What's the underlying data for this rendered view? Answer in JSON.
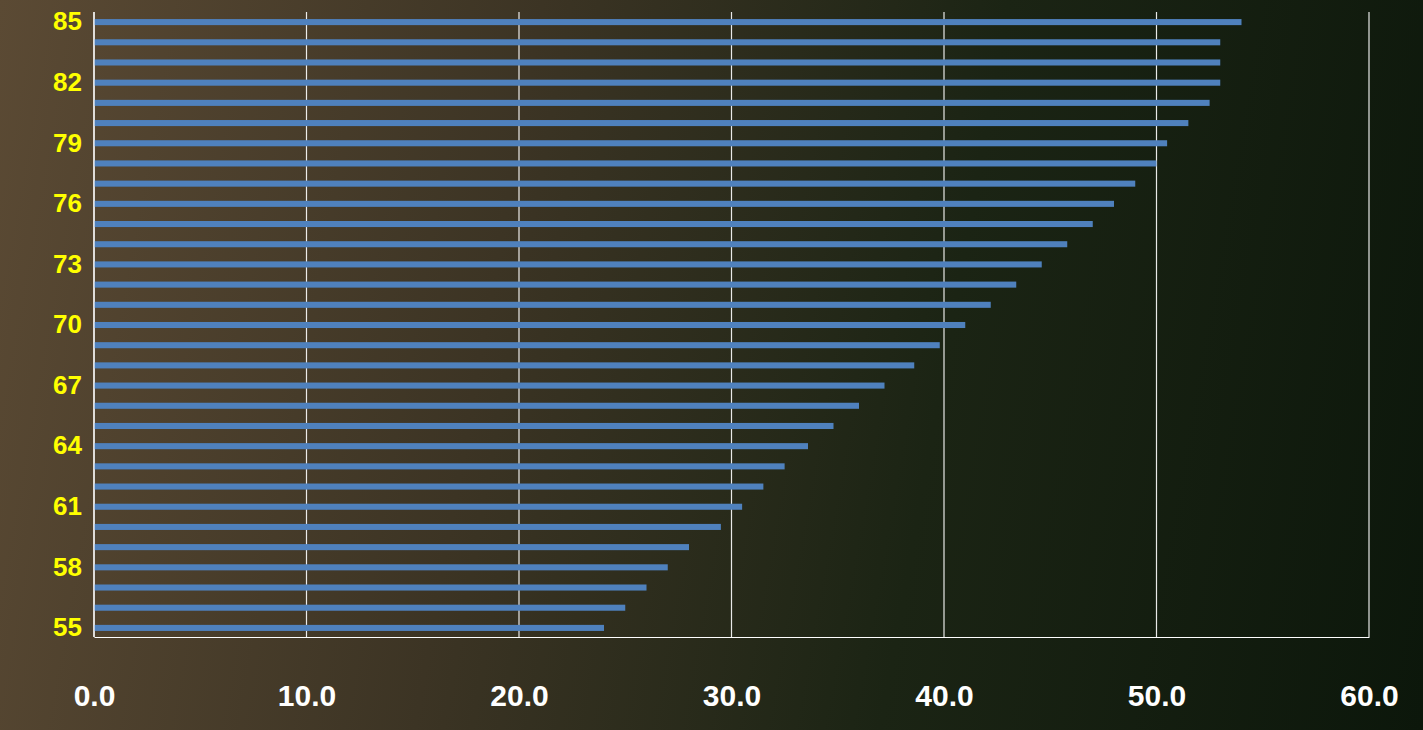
{
  "chart_data": {
    "type": "bar",
    "orientation": "horizontal",
    "categories": [
      "55",
      null,
      null,
      "58",
      null,
      null,
      "61",
      null,
      null,
      "64",
      null,
      null,
      "67",
      null,
      null,
      "70",
      null,
      null,
      "73",
      null,
      null,
      "76",
      null,
      null,
      "79",
      null,
      null,
      "82",
      null,
      null,
      "85"
    ],
    "values": [
      24.0,
      25.0,
      26.0,
      27.0,
      28.0,
      29.5,
      30.5,
      31.5,
      32.5,
      33.6,
      34.8,
      36.0,
      37.2,
      38.6,
      39.8,
      41.0,
      42.2,
      43.4,
      44.6,
      45.8,
      47.0,
      48.0,
      49.0,
      50.0,
      50.5,
      51.5,
      52.5,
      53.0,
      53.0,
      53.0,
      54.0
    ],
    "color": "#4f81bd",
    "xlim": [
      0,
      60
    ],
    "xticks": [
      {
        "value": 0,
        "label": "0.0"
      },
      {
        "value": 10,
        "label": "10.0"
      },
      {
        "value": 20,
        "label": "20.0"
      },
      {
        "value": 30,
        "label": "30.0"
      },
      {
        "value": 40,
        "label": "40.0"
      },
      {
        "value": 50,
        "label": "50.0"
      },
      {
        "value": 60,
        "label": "60.0"
      }
    ],
    "grid": true
  }
}
